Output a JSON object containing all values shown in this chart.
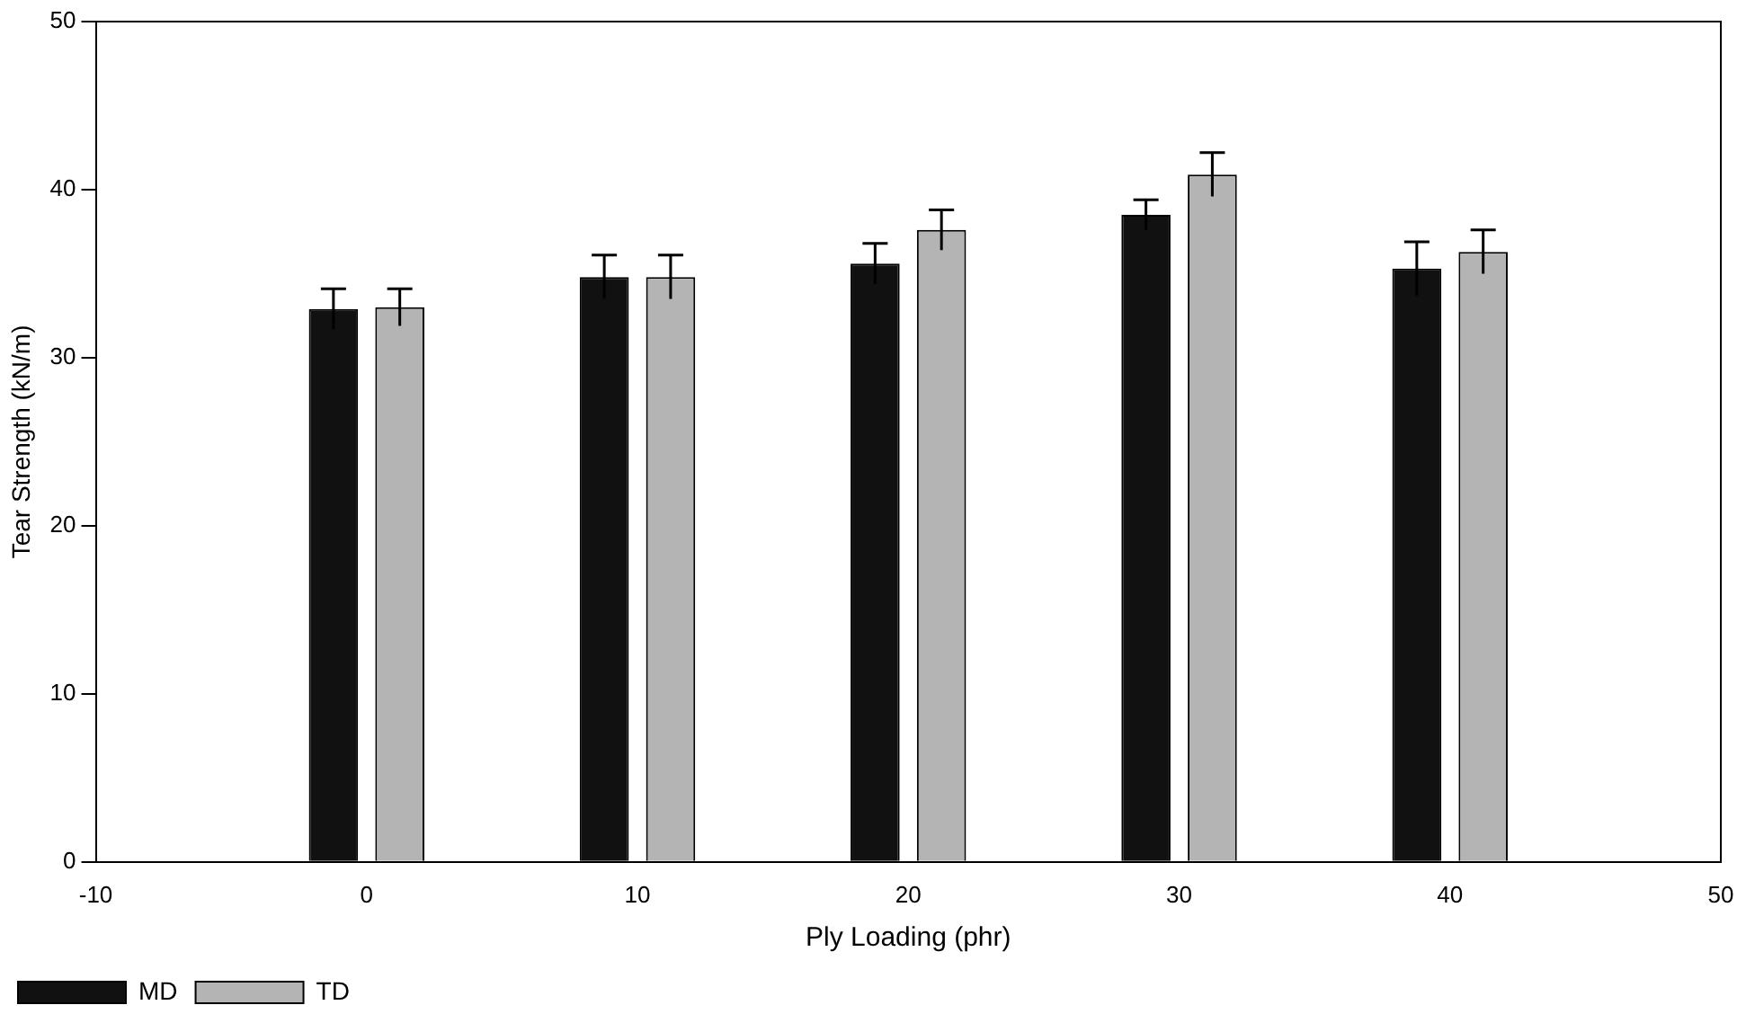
{
  "chart_data": {
    "type": "bar",
    "xlabel": "Ply Loading (phr)",
    "ylabel": "Tear Strength (kN/m)",
    "x": [
      0,
      10,
      20,
      30,
      40
    ],
    "series": [
      {
        "name": "MD",
        "color": "#111111",
        "values": [
          32.9,
          34.8,
          35.6,
          38.5,
          35.3
        ],
        "errors": [
          1.2,
          1.3,
          1.2,
          0.9,
          1.6
        ]
      },
      {
        "name": "TD",
        "color": "#b4b4b4",
        "values": [
          33.0,
          34.8,
          37.6,
          40.9,
          36.3
        ],
        "errors": [
          1.1,
          1.3,
          1.2,
          1.3,
          1.3
        ]
      }
    ],
    "xlim": [
      -10,
      50
    ],
    "xticks": [
      -10,
      0,
      10,
      20,
      30,
      40,
      50
    ],
    "ylim": [
      0,
      50
    ],
    "yticks": [
      0,
      10,
      20,
      30,
      40,
      50
    ],
    "grid": false,
    "legend": "bottom left"
  }
}
